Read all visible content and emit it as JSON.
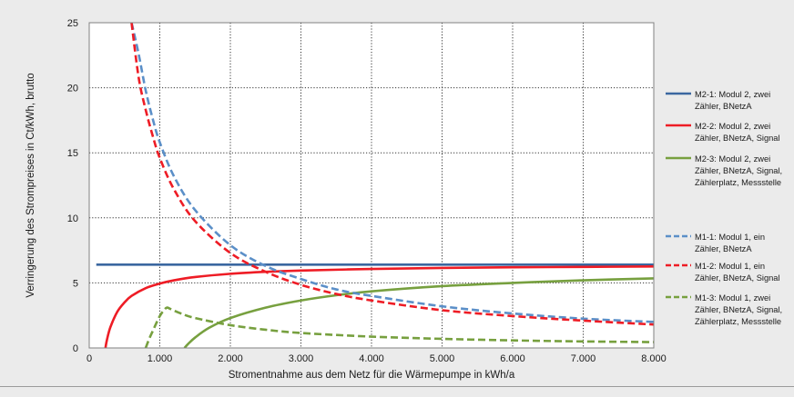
{
  "chart_data": {
    "type": "line",
    "title": "",
    "xlabel": "Stromentnahme aus dem Netz für die Wärmepumpe in kWh/a",
    "ylabel": "Verringerung des Strompreises  in Ct/kWh, brutto",
    "xlim": [
      0,
      8000
    ],
    "ylim": [
      0,
      25
    ],
    "x_ticks": [
      {
        "value": 0,
        "label": "0"
      },
      {
        "value": 1000,
        "label": "1.000"
      },
      {
        "value": 2000,
        "label": "2.000"
      },
      {
        "value": 3000,
        "label": "3.000"
      },
      {
        "value": 4000,
        "label": "4.000"
      },
      {
        "value": 5000,
        "label": "5.000"
      },
      {
        "value": 6000,
        "label": "6.000"
      },
      {
        "value": 7000,
        "label": "7.000"
      },
      {
        "value": 8000,
        "label": "8.000"
      }
    ],
    "y_ticks": [
      {
        "value": 0,
        "label": "0"
      },
      {
        "value": 5,
        "label": "5"
      },
      {
        "value": 10,
        "label": "10"
      },
      {
        "value": 15,
        "label": "15"
      },
      {
        "value": 20,
        "label": "20"
      },
      {
        "value": 25,
        "label": "25"
      }
    ],
    "grid": "dotted",
    "legend_position": "right",
    "series": [
      {
        "name": "M2-1: Modul 2, zwei Zähler, BNetzA",
        "legend_lines": [
          "M2-1: Modul 2, zwei",
          "Zähler, BNetzA"
        ],
        "color": "#3b67a0",
        "dash": "solid",
        "x": [
          100,
          8000
        ],
        "y": [
          6.4,
          6.4
        ]
      },
      {
        "name": "M2-2: Modul 2, zwei Zähler, BNetzA, Signal",
        "legend_lines": [
          "M2-2: Modul 2, zwei",
          "Zähler, BNetzA, Signal"
        ],
        "color": "#ee1c25",
        "dash": "solid",
        "x": [
          230,
          250,
          300,
          400,
          500,
          600,
          800,
          1000,
          1200,
          1500,
          2000,
          2500,
          3000,
          4000,
          5000,
          6000,
          7000,
          8000
        ],
        "y": [
          0.0,
          0.6,
          1.6,
          2.8,
          3.5,
          4.0,
          4.6,
          4.95,
          5.2,
          5.45,
          5.7,
          5.85,
          5.95,
          6.07,
          6.15,
          6.2,
          6.23,
          6.26
        ]
      },
      {
        "name": "M2-3: Modul 2, zwei Zähler, BNetzA, Signal, Zählerplatz, Messstelle",
        "legend_lines": [
          "M2-3: Modul 2, zwei",
          "Zähler, BNetzA, Signal,",
          "Zählerplatz, Messstelle"
        ],
        "color": "#77a03f",
        "dash": "solid",
        "x": [
          1350,
          1400,
          1500,
          1700,
          2000,
          2500,
          3000,
          3500,
          4000,
          5000,
          6000,
          7000,
          8000
        ],
        "y": [
          0.0,
          0.3,
          0.8,
          1.55,
          2.3,
          3.1,
          3.65,
          4.05,
          4.35,
          4.75,
          5.0,
          5.2,
          5.35
        ]
      },
      {
        "name": "M1-1: Modul 1, ein Zähler, BNetzA",
        "legend_lines": [
          "M1-1: Modul 1, ein",
          "Zähler, BNetzA"
        ],
        "color": "#5b8fc8",
        "dash": "dashed",
        "x": [
          600,
          700,
          800,
          900,
          1000,
          1200,
          1500,
          2000,
          2500,
          3000,
          3500,
          4000,
          5000,
          6000,
          7000,
          8000
        ],
        "y": [
          25.0,
          22.6,
          19.8,
          17.6,
          15.8,
          13.2,
          10.6,
          7.9,
          6.3,
          5.3,
          4.5,
          4.0,
          3.2,
          2.65,
          2.25,
          2.0
        ]
      },
      {
        "name": "M1-2: Modul 1, ein Zähler, BNetzA, Signal",
        "legend_lines": [
          "M1-2: Modul 1, ein",
          "Zähler, BNetzA, Signal"
        ],
        "color": "#ee1c25",
        "dash": "dashed",
        "x": [
          600,
          700,
          800,
          900,
          1000,
          1200,
          1500,
          2000,
          2500,
          3000,
          3500,
          4000,
          5000,
          6000,
          7000,
          8000
        ],
        "y": [
          25.0,
          20.8,
          18.3,
          16.3,
          14.6,
          12.2,
          9.75,
          7.3,
          5.85,
          4.85,
          4.15,
          3.65,
          2.9,
          2.45,
          2.1,
          1.8
        ]
      },
      {
        "name": "M1-3: Modul 1, zwei Zähler, BNetzA, Signal, Zählerplatz, Messstelle",
        "legend_lines": [
          "M1-3: Modul 1, zwei",
          "Zähler, BNetzA, Signal,",
          "Zählerplatz, Messstelle"
        ],
        "color": "#77a03f",
        "dash": "dashed",
        "x": [
          800,
          850,
          900,
          950,
          1000,
          1050,
          1100,
          1150,
          1300,
          1500,
          2000,
          2500,
          3000,
          4000,
          5000,
          6000,
          7000,
          8000
        ],
        "y": [
          0.0,
          0.7,
          1.3,
          1.9,
          2.45,
          2.85,
          3.1,
          3.0,
          2.65,
          2.3,
          1.75,
          1.4,
          1.15,
          0.87,
          0.7,
          0.58,
          0.5,
          0.45
        ]
      }
    ]
  }
}
